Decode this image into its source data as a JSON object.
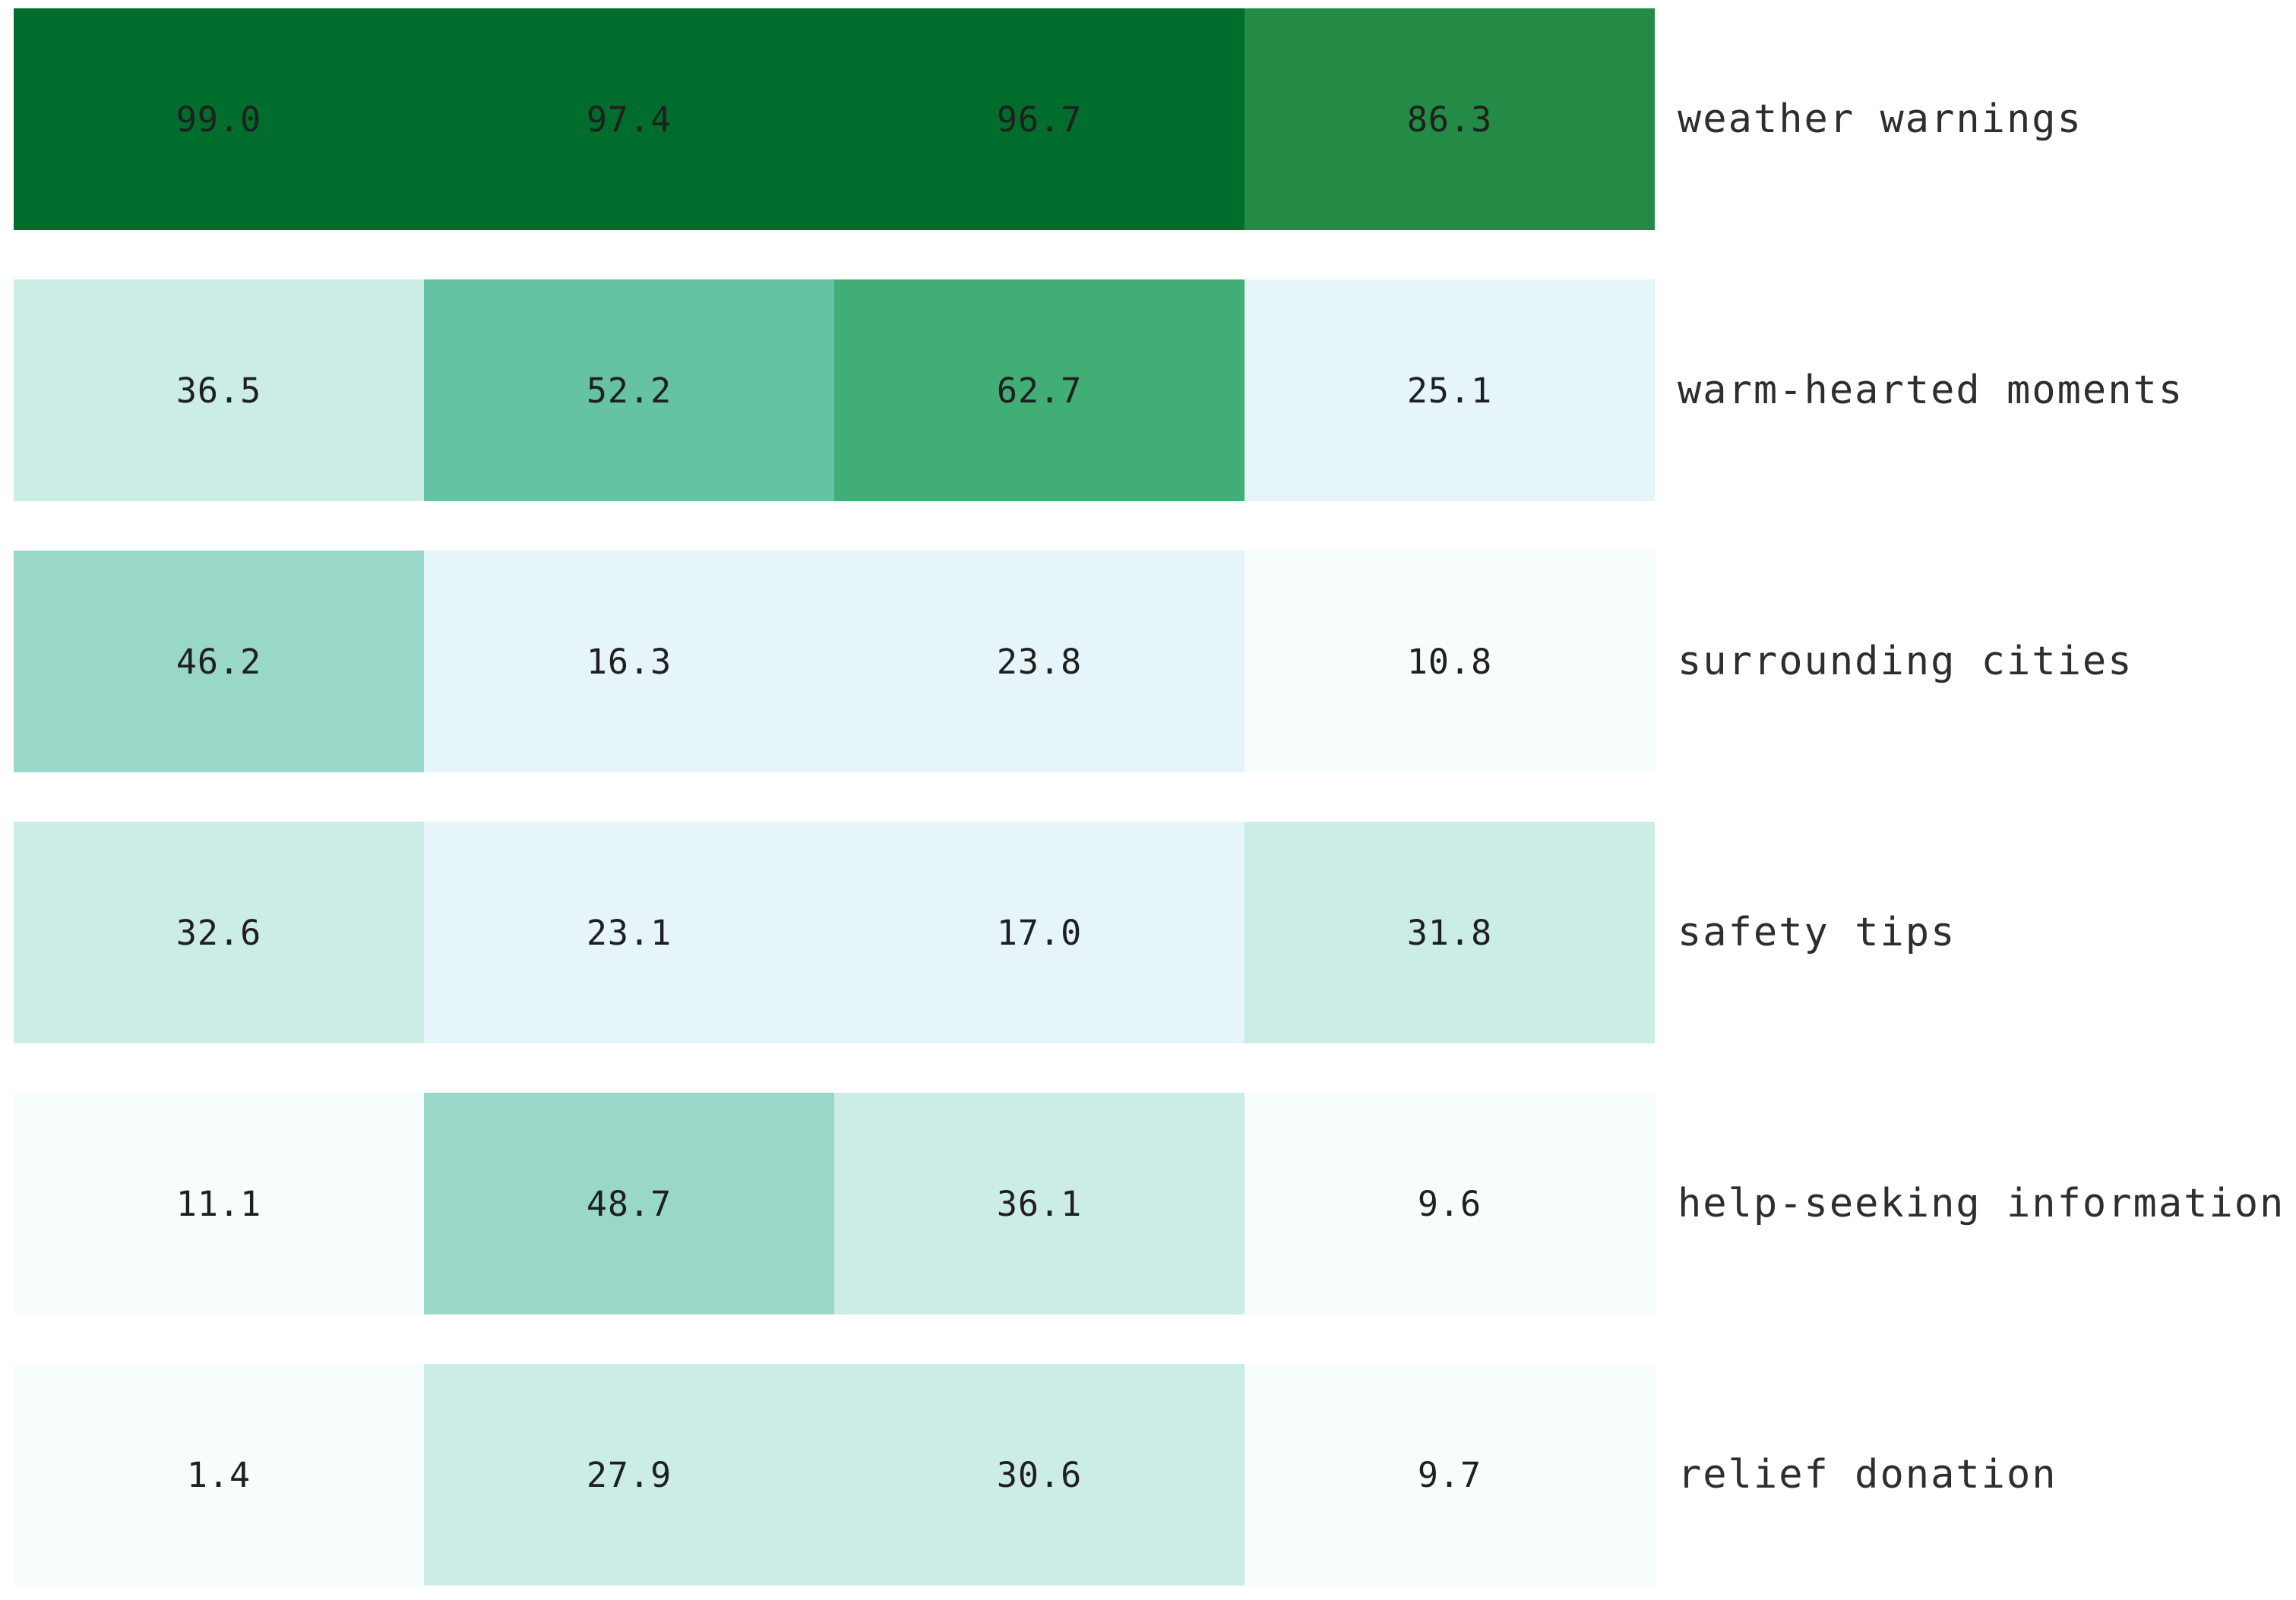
{
  "chart_data": {
    "type": "heatmap",
    "title": "",
    "columns": 4,
    "legend": "none",
    "grid": "off",
    "value_range": [
      0,
      100
    ],
    "rows": [
      {
        "label": "weather warnings",
        "values": [
          99.0,
          97.4,
          96.7,
          86.3
        ],
        "display": [
          "99.0",
          "97.4",
          "96.7",
          "86.3"
        ]
      },
      {
        "label": "warm-hearted moments",
        "values": [
          36.5,
          52.2,
          62.7,
          25.1
        ],
        "display": [
          "36.5",
          "52.2",
          "62.7",
          "25.1"
        ]
      },
      {
        "label": "surrounding cities",
        "values": [
          46.2,
          16.3,
          23.8,
          10.8
        ],
        "display": [
          "46.2",
          "16.3",
          "23.8",
          "10.8"
        ]
      },
      {
        "label": "safety tips",
        "values": [
          32.6,
          23.1,
          17.0,
          31.8
        ],
        "display": [
          "32.6",
          "23.1",
          "17.0",
          "31.8"
        ]
      },
      {
        "label": "help-seeking information",
        "values": [
          11.1,
          48.7,
          36.1,
          9.6
        ],
        "display": [
          "11.1",
          "48.7",
          "36.1",
          "9.6"
        ]
      },
      {
        "label": "relief donation",
        "values": [
          1.4,
          27.9,
          30.6,
          9.7
        ],
        "display": [
          "1.4",
          "27.9",
          "30.6",
          "9.7"
        ]
      }
    ],
    "palette": {
      "name": "BuGn-discrete",
      "thresholds": [
        13,
        26,
        39,
        52,
        62,
        75,
        88
      ],
      "colors": [
        "#f7fcfd",
        "#e5f5f9",
        "#ccece6",
        "#99d8c9",
        "#66c2a4",
        "#41ae76",
        "#238b45",
        "#006d2c"
      ]
    },
    "colors": {
      "background": "#ffffff",
      "value_text": "#1f1f1f",
      "label_text": "#2e2e2e"
    }
  }
}
